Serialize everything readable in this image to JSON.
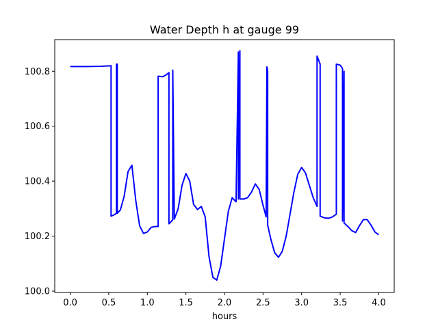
{
  "chart_data": {
    "type": "line",
    "title": "Water Depth h at gauge 99",
    "xlabel": "hours",
    "ylabel": "",
    "xlim": [
      -0.2,
      4.2
    ],
    "ylim": [
      99.995,
      100.915
    ],
    "xticks": [
      0.0,
      0.5,
      1.0,
      1.5,
      2.0,
      2.5,
      3.0,
      3.5,
      4.0
    ],
    "xtick_labels": [
      "0.0",
      "0.5",
      "1.0",
      "1.5",
      "2.0",
      "2.5",
      "3.0",
      "3.5",
      "4.0"
    ],
    "yticks": [
      100.0,
      100.2,
      100.4,
      100.6,
      100.8
    ],
    "ytick_labels": [
      "100.0",
      "100.2",
      "100.4",
      "100.6",
      "100.8"
    ],
    "grid": false,
    "line_color": "#0000ff",
    "series": [
      {
        "x": [
          0.0,
          0.2,
          0.4,
          0.53,
          0.53,
          0.56,
          0.6,
          0.6,
          0.61,
          0.61,
          0.65,
          0.7,
          0.75,
          0.8,
          0.85,
          0.9,
          0.95,
          1.0,
          1.05,
          1.1,
          1.14,
          1.14,
          1.2,
          1.25,
          1.28,
          1.28,
          1.3,
          1.33,
          1.33,
          1.35,
          1.4,
          1.45,
          1.5,
          1.55,
          1.6,
          1.65,
          1.7,
          1.75,
          1.8,
          1.85,
          1.9,
          1.95,
          2.0,
          2.05,
          2.1,
          2.15,
          2.18,
          2.18,
          2.2,
          2.2,
          2.25,
          2.3,
          2.35,
          2.4,
          2.45,
          2.5,
          2.54,
          2.55,
          2.56,
          2.56,
          2.6,
          2.65,
          2.7,
          2.75,
          2.8,
          2.85,
          2.9,
          2.95,
          3.0,
          3.05,
          3.1,
          3.15,
          3.2,
          3.2,
          3.24,
          3.24,
          3.3,
          3.35,
          3.4,
          3.45,
          3.45,
          3.5,
          3.53,
          3.53,
          3.55,
          3.55,
          3.6,
          3.65,
          3.7,
          3.75,
          3.8,
          3.85,
          3.9,
          3.95,
          4.0
        ],
        "y": [
          100.817,
          100.817,
          100.818,
          100.82,
          100.273,
          100.276,
          100.283,
          100.826,
          100.826,
          100.283,
          100.295,
          100.345,
          100.435,
          100.458,
          100.33,
          100.238,
          100.21,
          100.215,
          100.232,
          100.235,
          100.235,
          100.782,
          100.78,
          100.788,
          100.795,
          100.245,
          100.25,
          100.26,
          100.804,
          100.262,
          100.3,
          100.385,
          100.428,
          100.4,
          100.315,
          100.297,
          100.308,
          100.27,
          100.125,
          100.05,
          100.04,
          100.09,
          100.19,
          100.29,
          100.34,
          100.325,
          100.87,
          100.335,
          100.875,
          100.335,
          100.335,
          100.34,
          100.36,
          100.39,
          100.37,
          100.312,
          100.27,
          100.816,
          100.8,
          100.24,
          100.19,
          100.14,
          100.123,
          100.145,
          100.2,
          100.28,
          100.36,
          100.425,
          100.45,
          100.43,
          100.385,
          100.34,
          100.308,
          100.855,
          100.826,
          100.273,
          100.266,
          100.265,
          100.27,
          100.28,
          100.826,
          100.822,
          100.81,
          100.255,
          100.8,
          100.248,
          100.235,
          100.22,
          100.213,
          100.238,
          100.26,
          100.26,
          100.24,
          100.215,
          100.205
        ]
      }
    ]
  }
}
